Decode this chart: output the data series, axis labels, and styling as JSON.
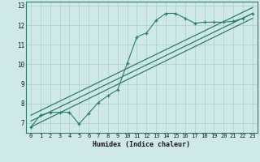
{
  "title": "",
  "xlabel": "Humidex (Indice chaleur)",
  "ylabel": "",
  "bg_color": "#cfe8e8",
  "grid_color": "#b0d4cc",
  "line_color": "#2d7d6e",
  "xlim": [
    -0.5,
    23.5
  ],
  "ylim": [
    6.5,
    13.2
  ],
  "yticks": [
    7,
    8,
    9,
    10,
    11,
    12,
    13
  ],
  "xticks": [
    0,
    1,
    2,
    3,
    4,
    5,
    6,
    7,
    8,
    9,
    10,
    11,
    12,
    13,
    14,
    15,
    16,
    17,
    18,
    19,
    20,
    21,
    22,
    23
  ],
  "zigzag_x": [
    0,
    1,
    2,
    3,
    4,
    5,
    6,
    7,
    8,
    9,
    10,
    11,
    12,
    13,
    14,
    15,
    16,
    17,
    18,
    19,
    20,
    21,
    22,
    23
  ],
  "zigzag_y": [
    6.8,
    7.4,
    7.55,
    7.55,
    7.55,
    6.95,
    7.5,
    8.05,
    8.4,
    8.7,
    10.05,
    11.4,
    11.6,
    12.25,
    12.6,
    12.6,
    12.35,
    12.1,
    12.15,
    12.15,
    12.15,
    12.2,
    12.35,
    12.6
  ],
  "line1_x": [
    0,
    23
  ],
  "line1_y": [
    7.4,
    12.9
  ],
  "line2_x": [
    0,
    23
  ],
  "line2_y": [
    7.1,
    12.6
  ],
  "line3_x": [
    0,
    23
  ],
  "line3_y": [
    6.8,
    12.35
  ]
}
